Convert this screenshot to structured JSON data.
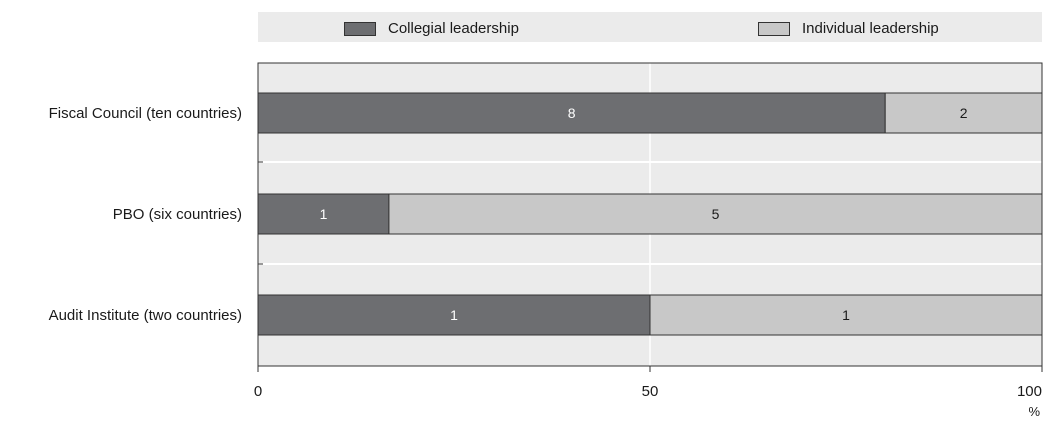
{
  "chart_data": {
    "type": "bar",
    "orientation": "horizontal",
    "stacked": true,
    "categories": [
      "Fiscal Council (ten countries)",
      "PBO (six countries)",
      "Audit Institute (two countries)"
    ],
    "series": [
      {
        "name": "Collegial leadership",
        "values": [
          80,
          16.7,
          50
        ],
        "data_labels": [
          "8",
          "1",
          "1"
        ],
        "color": "#6d6e71"
      },
      {
        "name": "Individual leadership",
        "values": [
          20,
          83.3,
          50
        ],
        "data_labels": [
          "2",
          "5",
          "1"
        ],
        "color": "#c8c8c8"
      }
    ],
    "xlim": [
      0,
      100
    ],
    "xticks": [
      "0",
      "50",
      "100"
    ],
    "xunit": "%",
    "grid": true,
    "legend_position": "top"
  },
  "colors": {
    "plot_background": "#ebebeb",
    "gridline": "#ffffff",
    "axis": "#333333"
  }
}
